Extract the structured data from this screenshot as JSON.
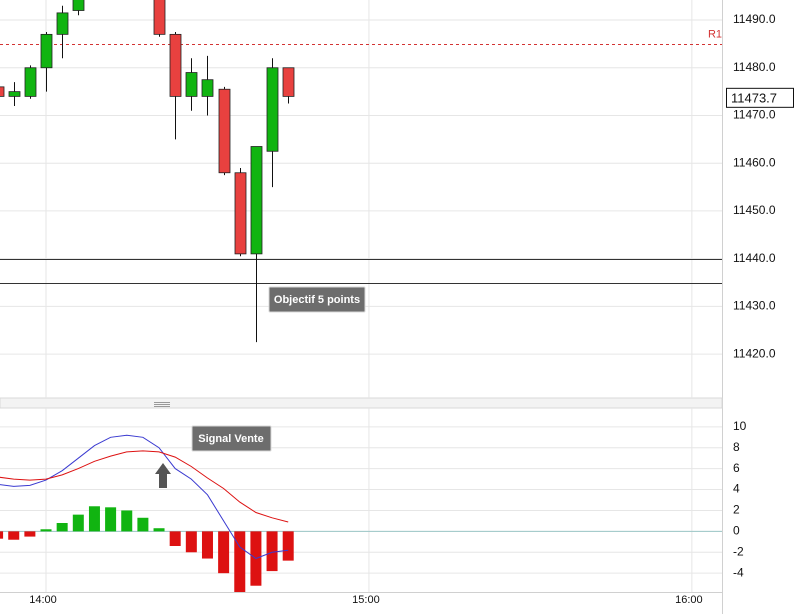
{
  "chart_data": [
    {
      "type": "candlestick",
      "x": [
        831,
        834,
        837,
        840,
        843,
        846,
        849,
        852,
        855,
        858,
        861,
        864,
        867,
        870,
        873,
        876,
        879,
        882,
        885
      ],
      "open": [
        11476,
        11474,
        11474,
        11480,
        11487,
        11492,
        null,
        null,
        null,
        null,
        11500,
        11487,
        11474,
        11474,
        11475.5,
        11458,
        11441,
        11462.5,
        11480
      ],
      "high": [
        11477,
        11477,
        11480.5,
        11487.5,
        11493,
        11497,
        null,
        null,
        null,
        null,
        11501,
        11487.5,
        11482,
        11482.5,
        11476,
        11459,
        11463.5,
        11482,
        11480
      ],
      "low": [
        11474,
        11472,
        11473.5,
        11475,
        11482,
        11491,
        null,
        null,
        null,
        null,
        11486.5,
        11465,
        11471,
        11470,
        11457.5,
        11440.5,
        11422.5,
        11455,
        11472.5
      ],
      "close": [
        11474,
        11475,
        11480,
        11487,
        11491.5,
        11496,
        null,
        null,
        null,
        null,
        11487,
        11474,
        11479,
        11477.5,
        11458,
        11441,
        11463.5,
        11480,
        11474
      ],
      "up_color": "#11b411",
      "down_color": "#e8413f",
      "xlim": [
        831.45,
        965.6
      ],
      "ylim": [
        11410.8,
        11494.2
      ],
      "yticks": [
        {
          "value": 11420,
          "label": "11420.0"
        },
        {
          "value": 11430,
          "label": "11430.0"
        },
        {
          "value": 11440,
          "label": "11440.0"
        },
        {
          "value": 11450,
          "label": "11450.0"
        },
        {
          "value": 11460,
          "label": "11460.0"
        },
        {
          "value": 11470,
          "label": "11470.0"
        },
        {
          "value": 11480,
          "label": "11480.0"
        },
        {
          "value": 11490,
          "label": "11490.0"
        }
      ],
      "lines": [
        {
          "name": "R1",
          "value": 11485,
          "color": "#d33333",
          "style": "dashed"
        },
        {
          "value": 11440,
          "color": "#333333",
          "style": "solid"
        },
        {
          "value": 11435,
          "color": "#333333",
          "style": "solid"
        }
      ],
      "last_price": 11473.7,
      "annotation": "Objectif 5 points"
    },
    {
      "type": "macd",
      "x": [
        831,
        834,
        837,
        840,
        843,
        846,
        849,
        852,
        855,
        858,
        861,
        864,
        867,
        870,
        873,
        876,
        879,
        882,
        885
      ],
      "histogram": {
        "values": [
          -0.7,
          -0.8,
          -0.5,
          0.2,
          0.8,
          1.6,
          2.4,
          2.3,
          2.0,
          1.3,
          0.3,
          -1.4,
          -2.0,
          -2.6,
          -4.0,
          -5.8,
          -5.2,
          -3.8,
          -2.8
        ],
        "up_color": "#11b411",
        "down_color": "#dd1111"
      },
      "series": [
        {
          "color": "#3a3ad0",
          "values": [
            4.5,
            4.3,
            4.4,
            4.9,
            5.8,
            7.0,
            8.2,
            9.0,
            9.2,
            9.0,
            8.0,
            6.0,
            5.0,
            3.5,
            1.0,
            -1.5,
            -2.6,
            -2.0,
            -1.8
          ]
        },
        {
          "color": "#dd1111",
          "values": [
            5.2,
            5.0,
            4.9,
            5.0,
            5.4,
            6.0,
            6.7,
            7.2,
            7.6,
            7.7,
            7.6,
            7.1,
            6.2,
            5.1,
            4.1,
            2.8,
            1.8,
            1.3,
            0.9
          ]
        }
      ],
      "xlim": [
        831.45,
        965.6
      ],
      "xticks": [
        {
          "value": 840,
          "label": "14:00"
        },
        {
          "value": 900,
          "label": "15:00"
        },
        {
          "value": 960,
          "label": "16:00"
        }
      ],
      "ylim": [
        -5.8,
        11.8
      ],
      "yticks": [
        -4,
        -2,
        0,
        2,
        4,
        6,
        8,
        10
      ],
      "annotation": "Signal Vente"
    }
  ]
}
